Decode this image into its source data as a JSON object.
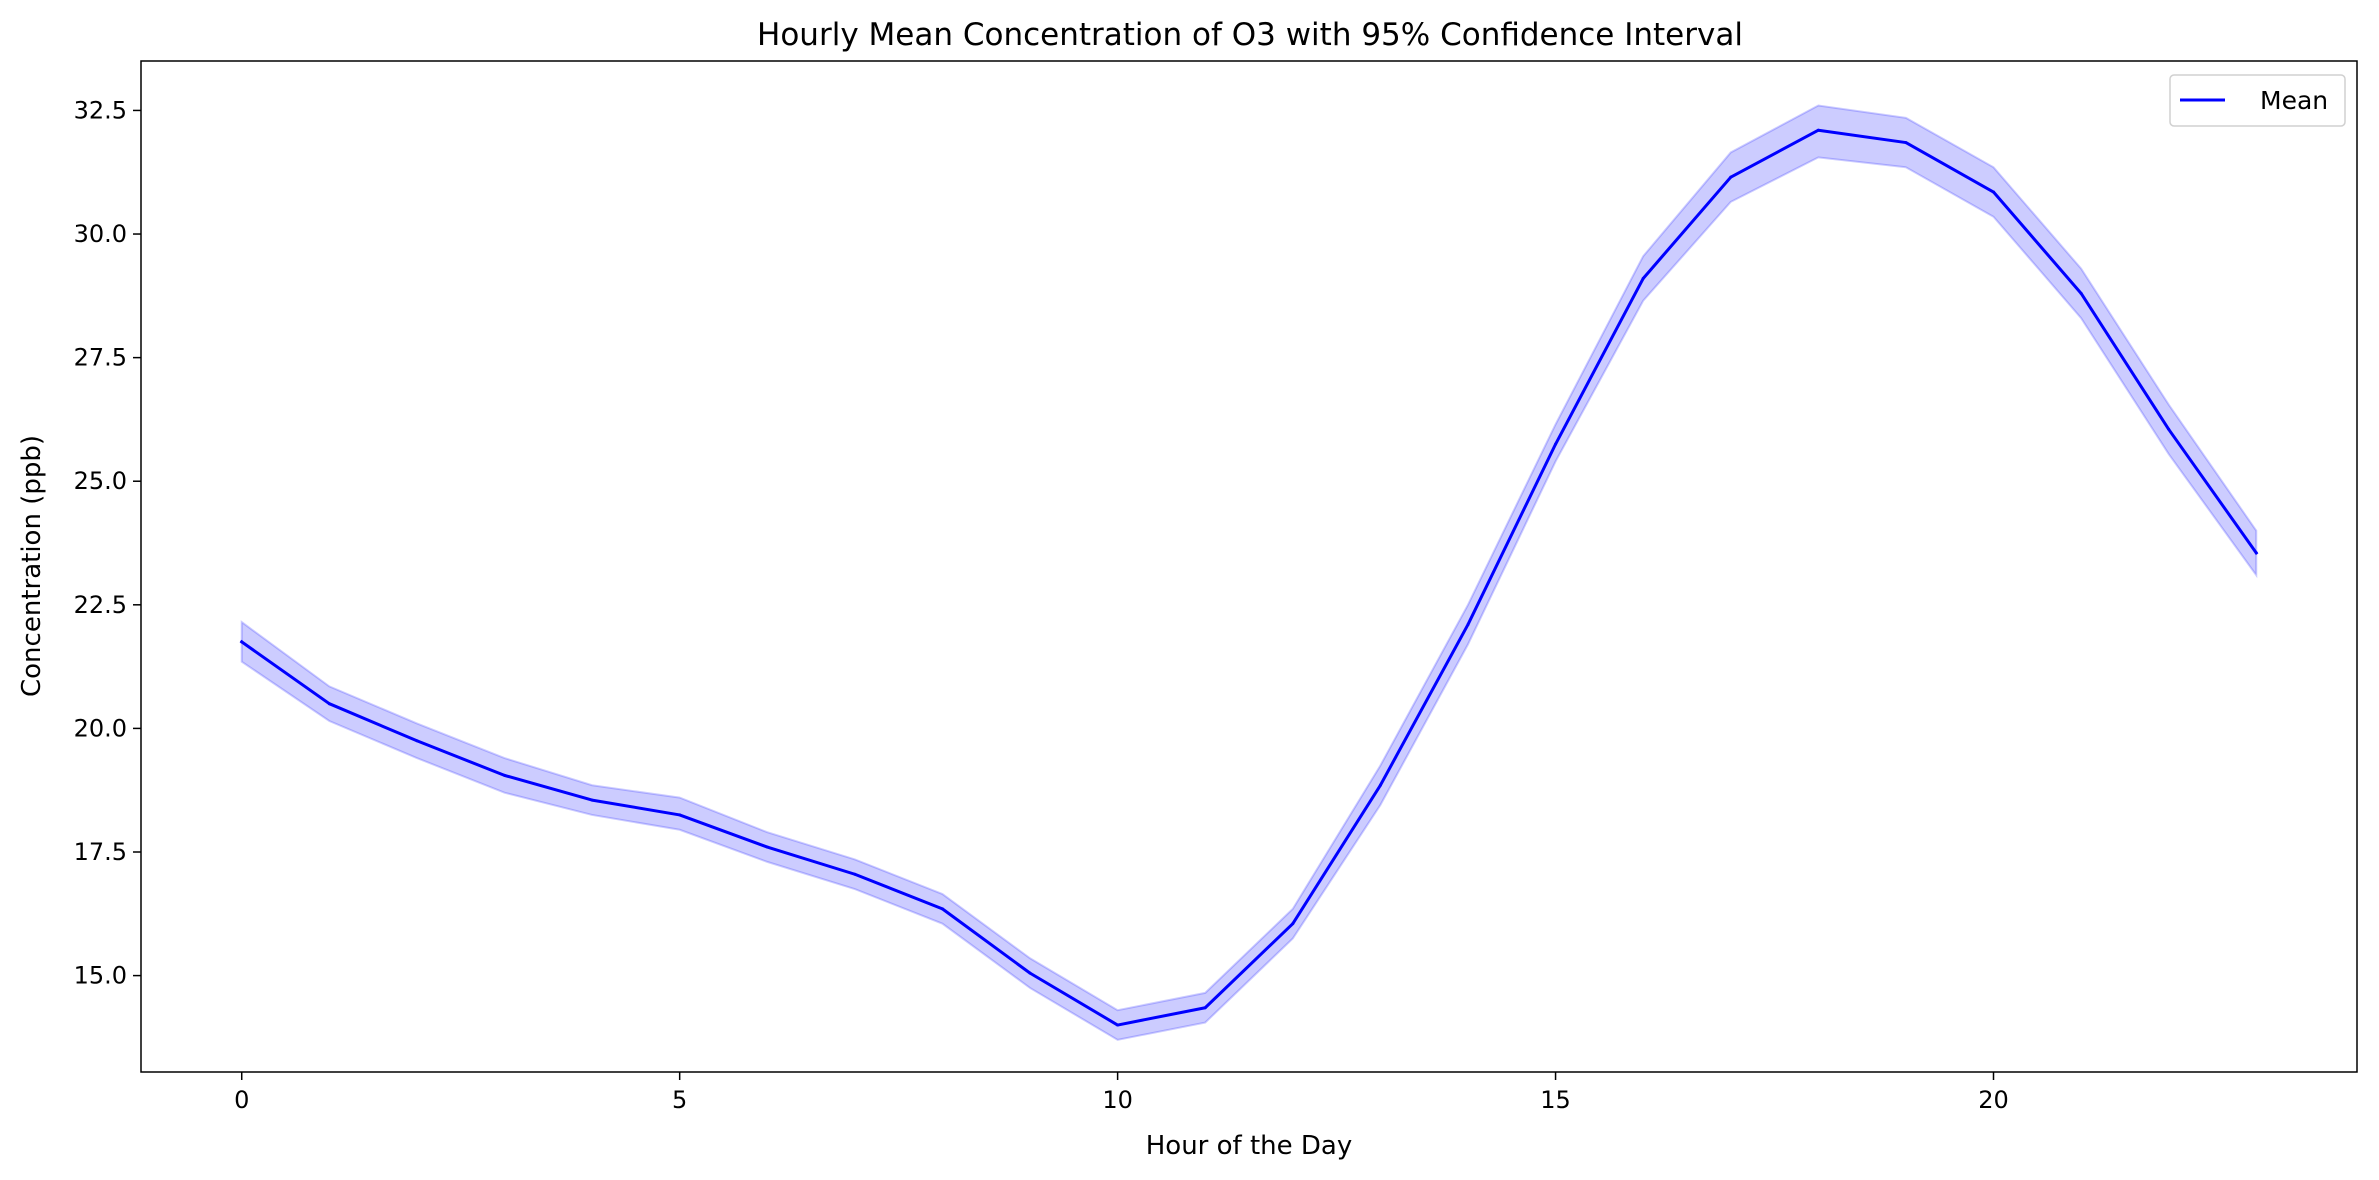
{
  "chart_data": {
    "type": "line",
    "title": "Hourly Mean Concentration of O3 with 95% Confidence Interval",
    "xlabel": "Hour of the Day",
    "ylabel": "Concentration (ppb)",
    "xlim": [
      -1.15,
      24.15
    ],
    "ylim": [
      13.05,
      33.5
    ],
    "x_ticks": [
      0,
      5,
      10,
      15,
      20
    ],
    "y_ticks": [
      15.0,
      17.5,
      20.0,
      22.5,
      25.0,
      27.5,
      30.0,
      32.5
    ],
    "grid": false,
    "legend_position": "top-right",
    "x": [
      0,
      1,
      2,
      3,
      4,
      5,
      6,
      7,
      8,
      9,
      10,
      11,
      12,
      13,
      14,
      15,
      16,
      17,
      18,
      19,
      20,
      21,
      22,
      23
    ],
    "series": [
      {
        "name": "Mean",
        "color": "#0000ff",
        "values": [
          21.75,
          20.5,
          19.75,
          19.05,
          18.55,
          18.25,
          17.6,
          17.05,
          16.35,
          15.05,
          14.0,
          14.35,
          16.05,
          18.85,
          22.1,
          25.75,
          29.1,
          31.15,
          32.1,
          31.85,
          30.85,
          28.8,
          26.05,
          23.55
        ],
        "ci_lower": [
          21.35,
          20.15,
          19.4,
          18.7,
          18.25,
          17.95,
          17.3,
          16.75,
          16.05,
          14.75,
          13.7,
          14.05,
          15.75,
          18.45,
          21.7,
          25.4,
          28.65,
          30.65,
          31.55,
          31.35,
          30.35,
          28.3,
          25.55,
          23.1
        ],
        "ci_upper": [
          22.15,
          20.85,
          20.1,
          19.4,
          18.85,
          18.6,
          17.9,
          17.35,
          16.65,
          15.35,
          14.3,
          14.65,
          16.35,
          19.25,
          22.5,
          26.15,
          29.55,
          31.65,
          32.6,
          32.35,
          31.35,
          29.3,
          26.55,
          24.0
        ],
        "ci_color": "#0000ff"
      }
    ]
  }
}
